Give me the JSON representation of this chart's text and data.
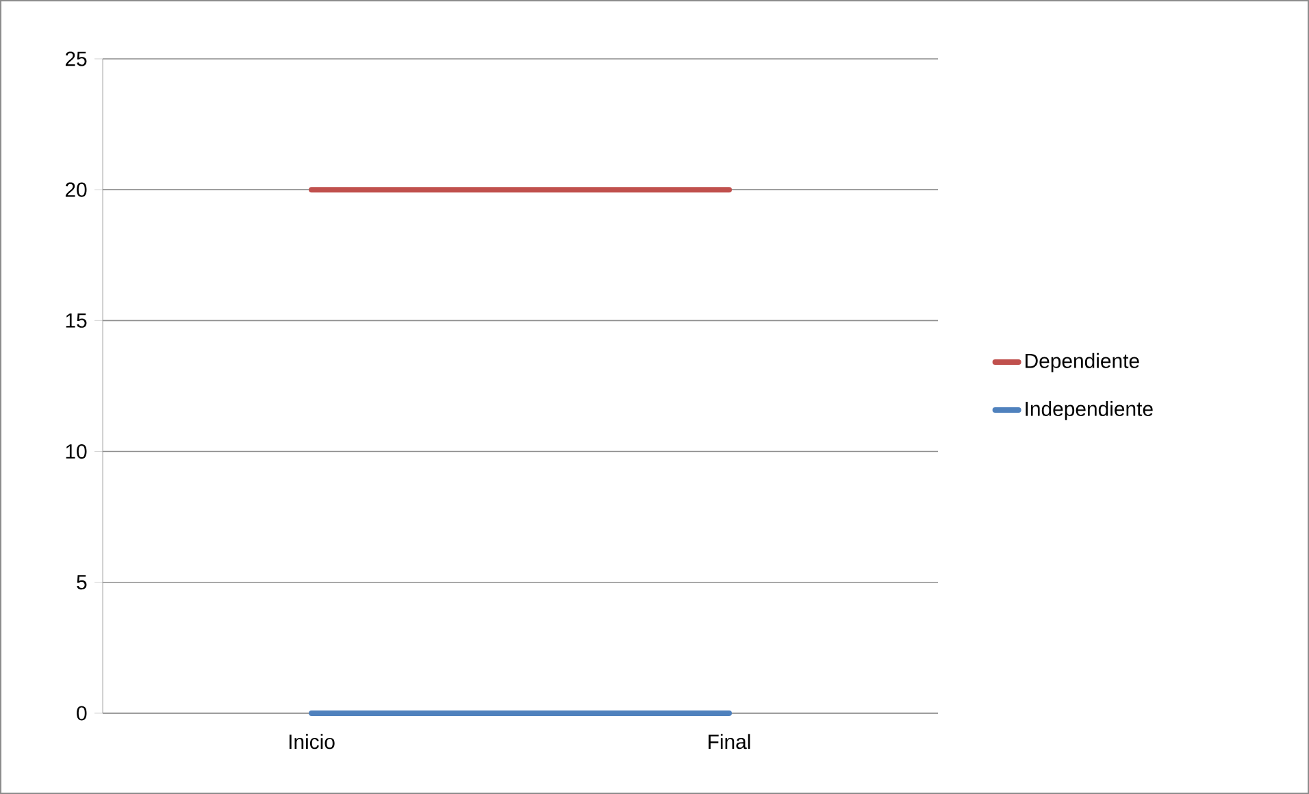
{
  "chart_data": {
    "type": "line",
    "categories": [
      "Inicio",
      "Final"
    ],
    "series": [
      {
        "name": "Dependiente",
        "color": "#c0504d",
        "values": [
          20,
          20
        ]
      },
      {
        "name": "Independiente",
        "color": "#4f81bd",
        "values": [
          0,
          0
        ]
      }
    ],
    "ylim": [
      0,
      25
    ],
    "yticks": [
      0,
      5,
      10,
      15,
      20,
      25
    ],
    "grid": "y",
    "legend": "right",
    "marker": "none",
    "line_style": "solid"
  }
}
